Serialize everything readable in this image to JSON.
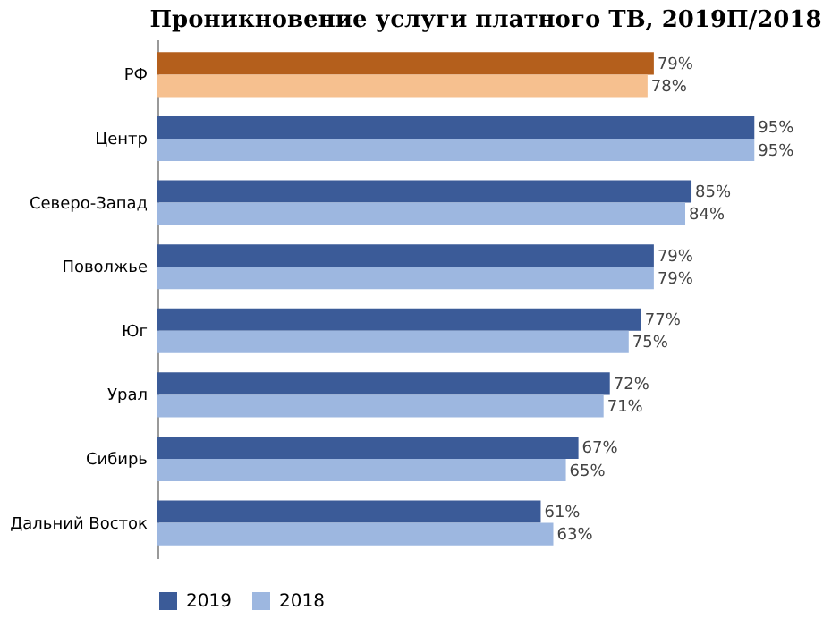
{
  "chart_data": {
    "type": "bar",
    "orientation": "horizontal",
    "title": "Проникновение услуги платного ТВ, 2019П/2018",
    "categories": [
      "РФ",
      "Центр",
      "Северо-Запад",
      "Поволжье",
      "Юг",
      "Урал",
      "Сибирь",
      "Дальний Восток"
    ],
    "series": [
      {
        "name": "2019",
        "color": "#3b5b98",
        "colors": [
          "#b45f1c",
          "#3b5b98",
          "#3b5b98",
          "#3b5b98",
          "#3b5b98",
          "#3b5b98",
          "#3b5b98",
          "#3b5b98"
        ],
        "values": [
          79,
          95,
          85,
          79,
          77,
          72,
          67,
          61
        ],
        "value_labels": [
          "79%",
          "95%",
          "85%",
          "79%",
          "77%",
          "72%",
          "67%",
          "61%"
        ]
      },
      {
        "name": "2018",
        "color": "#9db7e0",
        "colors": [
          "#f6c08f",
          "#9db7e0",
          "#9db7e0",
          "#9db7e0",
          "#9db7e0",
          "#9db7e0",
          "#9db7e0",
          "#9db7e0"
        ],
        "values": [
          78,
          95,
          84,
          79,
          75,
          71,
          65,
          63
        ],
        "value_labels": [
          "78%",
          "95%",
          "84%",
          "79%",
          "75%",
          "71%",
          "65%",
          "63%"
        ]
      }
    ],
    "legend": "bottom",
    "grid": false
  }
}
